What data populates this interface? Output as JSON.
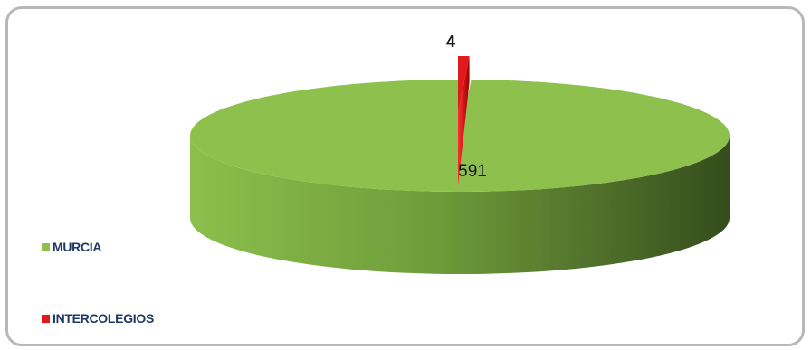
{
  "chart_data": {
    "type": "pie",
    "style": "3d",
    "title": "",
    "categories": [
      "MURCIA",
      "INTERCOLEGIOS"
    ],
    "values": [
      591,
      4
    ],
    "data_labels": [
      "591",
      "4"
    ],
    "colors": [
      "#8dc04d",
      "#e31a1c"
    ],
    "legend": {
      "placement": "bottom-left",
      "entries": [
        "MURCIA",
        "INTERCOLEGIOS"
      ]
    }
  }
}
